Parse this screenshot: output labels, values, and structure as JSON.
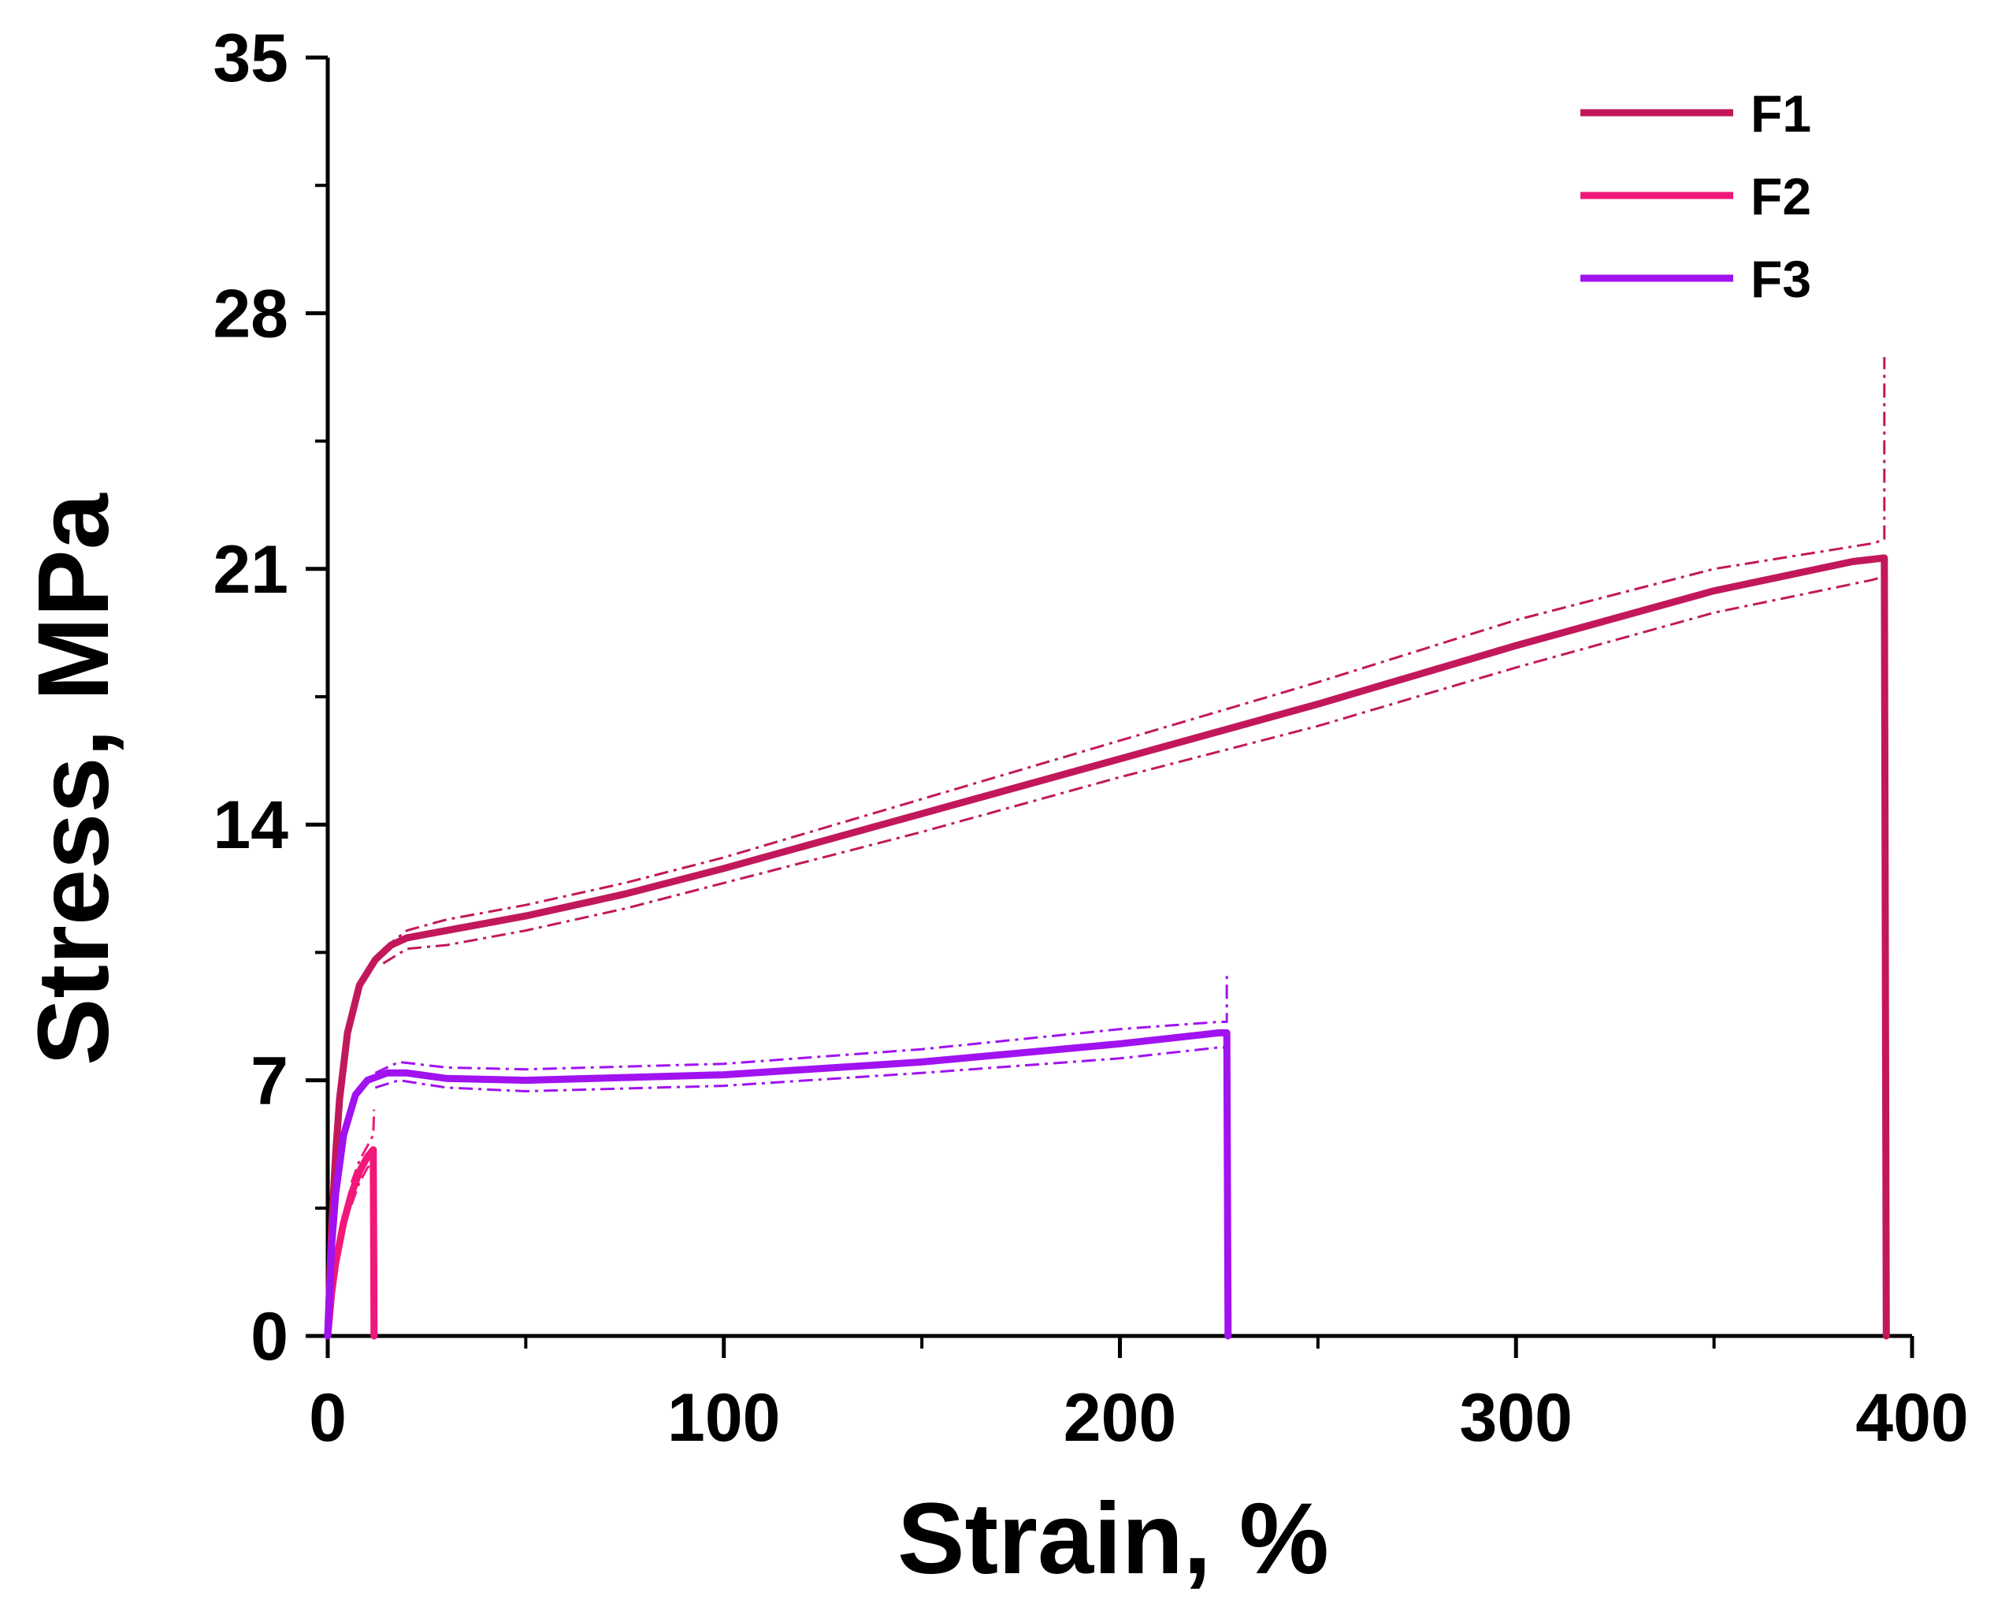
{
  "chart_data": {
    "type": "line",
    "xlabel": "Strain, %",
    "ylabel": "Stress, MPa",
    "xlim": [
      0,
      400
    ],
    "ylim": [
      0,
      35
    ],
    "xticks": [
      "0",
      "100",
      "200",
      "300",
      "400"
    ],
    "yticks": [
      "0",
      "7",
      "14",
      "21",
      "28",
      "35"
    ],
    "grid": false,
    "legend_position": "top-right",
    "series": [
      {
        "name": "F1",
        "color": "#c2185b",
        "values": [
          [
            0,
            0
          ],
          [
            1,
            3.0
          ],
          [
            2,
            5.0
          ],
          [
            3,
            6.5
          ],
          [
            5,
            8.3
          ],
          [
            8,
            9.6
          ],
          [
            12,
            10.3
          ],
          [
            16,
            10.7
          ],
          [
            20,
            10.9
          ],
          [
            30,
            11.1
          ],
          [
            50,
            11.5
          ],
          [
            75,
            12.1
          ],
          [
            100,
            12.8
          ],
          [
            150,
            14.3
          ],
          [
            200,
            15.8
          ],
          [
            250,
            17.3
          ],
          [
            300,
            18.9
          ],
          [
            350,
            20.4
          ],
          [
            385,
            21.2
          ],
          [
            393,
            21.3
          ],
          [
            393.5,
            0
          ]
        ],
        "upper": [
          [
            14,
            10.6
          ],
          [
            20,
            11.1
          ],
          [
            30,
            11.4
          ],
          [
            50,
            11.8
          ],
          [
            75,
            12.4
          ],
          [
            100,
            13.1
          ],
          [
            150,
            14.7
          ],
          [
            200,
            16.3
          ],
          [
            250,
            17.9
          ],
          [
            300,
            19.6
          ],
          [
            350,
            21.0
          ],
          [
            390,
            21.7
          ],
          [
            393,
            21.8
          ],
          [
            393,
            26.8
          ]
        ],
        "lower": [
          [
            14,
            10.2
          ],
          [
            20,
            10.6
          ],
          [
            30,
            10.7
          ],
          [
            50,
            11.1
          ],
          [
            75,
            11.7
          ],
          [
            100,
            12.4
          ],
          [
            150,
            13.8
          ],
          [
            200,
            15.3
          ],
          [
            250,
            16.7
          ],
          [
            300,
            18.3
          ],
          [
            350,
            19.8
          ],
          [
            390,
            20.7
          ],
          [
            393,
            20.8
          ]
        ]
      },
      {
        "name": "F2",
        "color": "#f0187a",
        "values": [
          [
            0,
            0
          ],
          [
            1,
            1.2
          ],
          [
            2,
            2.0
          ],
          [
            4,
            3.1
          ],
          [
            6,
            3.9
          ],
          [
            8,
            4.5
          ],
          [
            10,
            4.9
          ],
          [
            11.5,
            5.1
          ],
          [
            11.7,
            0
          ]
        ],
        "upper": [
          [
            6,
            4.2
          ],
          [
            8,
            4.8
          ],
          [
            10,
            5.2
          ],
          [
            11.5,
            5.5
          ],
          [
            11.7,
            6.2
          ]
        ],
        "lower": [
          [
            6,
            3.6
          ],
          [
            8,
            4.2
          ],
          [
            10,
            4.6
          ],
          [
            11.5,
            4.8
          ]
        ]
      },
      {
        "name": "F3",
        "color": "#a112f0",
        "values": [
          [
            0,
            0
          ],
          [
            1,
            2.5
          ],
          [
            2,
            3.9
          ],
          [
            4,
            5.5
          ],
          [
            7,
            6.6
          ],
          [
            10,
            7.0
          ],
          [
            15,
            7.2
          ],
          [
            20,
            7.2
          ],
          [
            30,
            7.05
          ],
          [
            50,
            7.0
          ],
          [
            100,
            7.15
          ],
          [
            150,
            7.5
          ],
          [
            200,
            8.0
          ],
          [
            225,
            8.3
          ],
          [
            227,
            8.3
          ],
          [
            227.3,
            0
          ]
        ],
        "upper": [
          [
            12,
            7.2
          ],
          [
            18,
            7.5
          ],
          [
            30,
            7.35
          ],
          [
            50,
            7.3
          ],
          [
            100,
            7.45
          ],
          [
            150,
            7.85
          ],
          [
            200,
            8.4
          ],
          [
            225,
            8.6
          ],
          [
            227,
            8.6
          ],
          [
            227,
            10.0
          ]
        ],
        "lower": [
          [
            12,
            6.8
          ],
          [
            18,
            7.0
          ],
          [
            30,
            6.8
          ],
          [
            50,
            6.7
          ],
          [
            100,
            6.85
          ],
          [
            150,
            7.2
          ],
          [
            200,
            7.6
          ],
          [
            225,
            7.9
          ],
          [
            227,
            7.9
          ]
        ]
      }
    ]
  }
}
